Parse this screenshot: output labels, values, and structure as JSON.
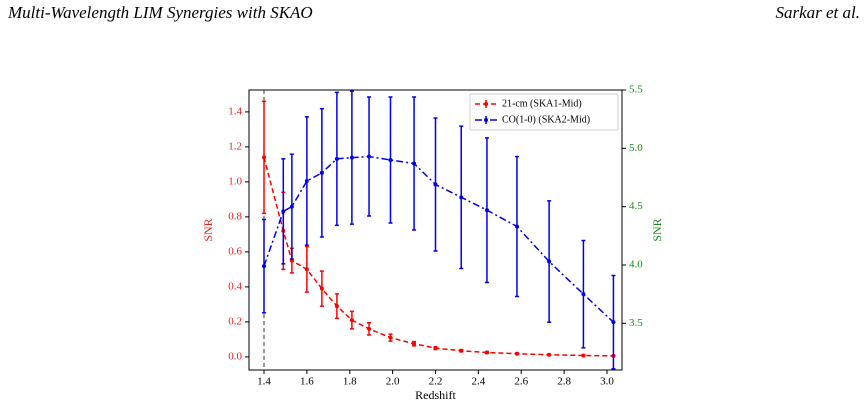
{
  "header": {
    "left": "Multi-Wavelength LIM Synergies with SKAO",
    "right": "Sarkar et al."
  },
  "chart_data": {
    "type": "errorbar",
    "xlabel": "Redshift",
    "ylabel": "SNR",
    "y2label": "SNR",
    "xlim": [
      1.33,
      3.07
    ],
    "ylim": [
      -0.075,
      1.525
    ],
    "y2lim": [
      3.1,
      5.5
    ],
    "xticks": [
      1.4,
      1.6,
      1.8,
      {
        "value": 2,
        "label": "2.0"
      },
      2.2,
      2.4,
      2.6,
      2.8,
      {
        "value": 3,
        "label": "3.0"
      }
    ],
    "yticks": [
      {
        "value": 0,
        "label": "0.0"
      },
      0.2,
      0.4,
      0.6,
      0.8,
      {
        "value": 1,
        "label": "1.0"
      },
      1.2,
      1.4
    ],
    "y2ticks": [
      3.5,
      {
        "value": 4,
        "label": "4.0"
      },
      4.5,
      {
        "value": 5,
        "label": "5.0"
      },
      5.5
    ],
    "ylabel_color": "#e8201e",
    "y2label_color": "#1a8a1a",
    "vline": 1.4,
    "legend": "upper right",
    "series": [
      {
        "name": "21-cm (SKA1-Mid)",
        "color": "#ff0000",
        "dash": "dashed",
        "axis": "y",
        "x": [
          1.4,
          1.49,
          1.53,
          1.6,
          1.67,
          1.74,
          1.81,
          1.89,
          1.99,
          2.1,
          2.2,
          2.32,
          2.44,
          2.58,
          2.73,
          2.89,
          3.03
        ],
        "values": [
          1.14,
          0.72,
          0.55,
          0.5,
          0.39,
          0.29,
          0.21,
          0.16,
          0.11,
          0.075,
          0.05,
          0.035,
          0.025,
          0.018,
          0.012,
          0.008,
          0.006
        ],
        "errors": [
          0.32,
          0.22,
          0.07,
          0.13,
          0.1,
          0.07,
          0.05,
          0.035,
          0.02,
          0.012,
          0.008,
          0.006,
          0.005,
          0.004,
          0.003,
          0.002,
          0.002
        ]
      },
      {
        "name": "CO(1-0) (SKA2-Mid)",
        "color": "#0000ee",
        "dash": "dashdot",
        "axis": "y2",
        "x": [
          1.4,
          1.49,
          1.53,
          1.6,
          1.67,
          1.74,
          1.81,
          1.89,
          1.99,
          2.1,
          2.2,
          2.32,
          2.44,
          2.58,
          2.73,
          2.89,
          3.03
        ],
        "values": [
          3.99,
          4.46,
          4.5,
          4.72,
          4.79,
          4.91,
          4.92,
          4.93,
          4.9,
          4.87,
          4.69,
          4.58,
          4.47,
          4.33,
          4.03,
          3.75,
          3.51
        ],
        "errors": [
          0.4,
          0.45,
          0.45,
          0.55,
          0.55,
          0.57,
          0.57,
          0.51,
          0.54,
          0.57,
          0.57,
          0.61,
          0.62,
          0.6,
          0.52,
          0.46,
          0.4
        ]
      }
    ]
  }
}
